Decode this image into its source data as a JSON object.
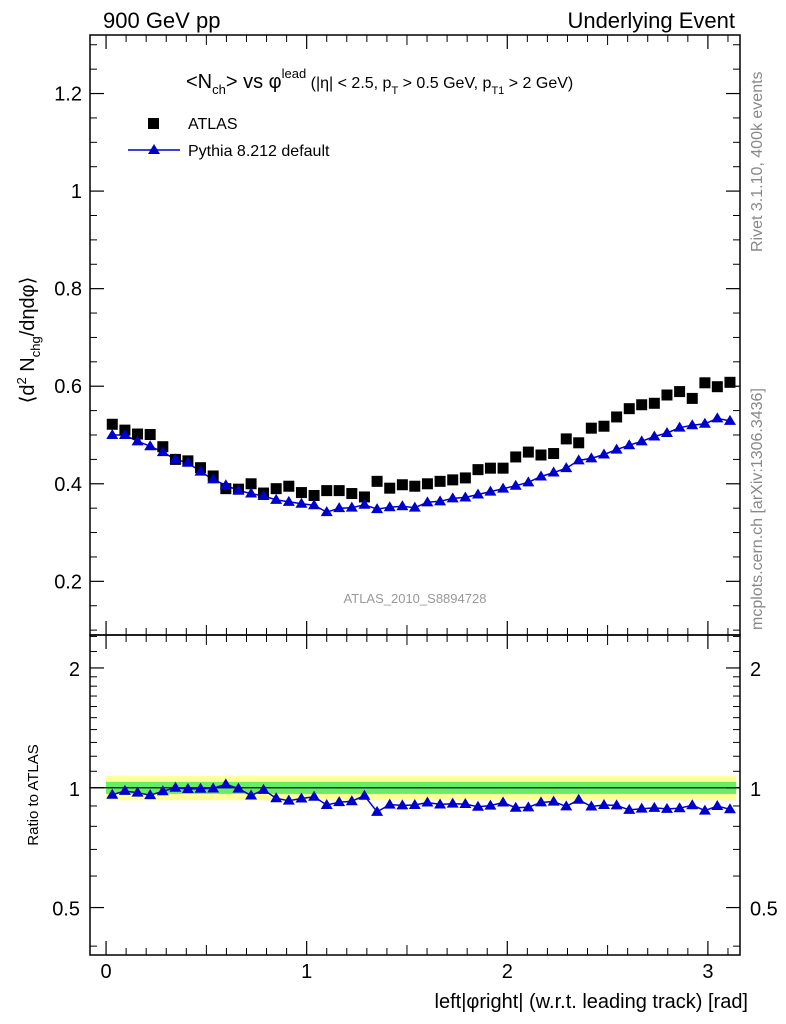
{
  "header": {
    "left_title": "900 GeV pp",
    "right_title": "Underlying Event"
  },
  "side_labels": {
    "rivet": "Rivet 3.1.10,  400k events",
    "mcplots": "mcplots.cern.ch [arXiv:1306.3436]"
  },
  "colors": {
    "data": "#000000",
    "mc": "#0000cc",
    "band_outer": "#ffff99",
    "band_inner": "#66ee66",
    "watermark": "#999999",
    "side_text": "#888888"
  },
  "chart_data": [
    {
      "type": "scatter",
      "panel": "main",
      "title": "<N_ch> vs φ^lead (|η| < 2.5, p_T > 0.5 GeV, p_T1 > 2 GeV)",
      "title_parts": {
        "n": "<N",
        "n_sub": "ch",
        "vs": "> vs φ",
        "sup": "lead",
        "cuts1": " (|η| < 2.5, p",
        "sub_t": "T",
        "cuts2": " > 0.5 GeV, p",
        "sub_t1": "T1",
        "cuts3": " > 2 GeV)"
      },
      "ylabel": "⟨d² N_chg/dηdφ⟩",
      "ylabel_parts": {
        "a": "⟨d",
        "sup": "2",
        "b": " N",
        "sub": "chg",
        "c": "/dηdφ⟩"
      },
      "xlim": [
        -0.08,
        3.16
      ],
      "ylim": [
        0.09,
        1.32
      ],
      "yticks": [
        0.2,
        0.4,
        0.6,
        0.8,
        1.0,
        1.2
      ],
      "ytick_labels": [
        "0.2",
        "0.4",
        "0.6",
        "0.8",
        "1",
        "1.2"
      ],
      "watermark": "ATLAS_2010_S8894728",
      "legend": [
        {
          "name": "ATLAS",
          "marker": "square"
        },
        {
          "name": "Pythia 8.212 default",
          "marker": "triangle-line"
        }
      ],
      "series": [
        {
          "name": "ATLAS",
          "x": [
            0.031,
            0.094,
            0.157,
            0.22,
            0.283,
            0.346,
            0.408,
            0.471,
            0.534,
            0.597,
            0.66,
            0.723,
            0.785,
            0.848,
            0.911,
            0.974,
            1.037,
            1.1,
            1.162,
            1.225,
            1.288,
            1.351,
            1.414,
            1.477,
            1.539,
            1.602,
            1.665,
            1.728,
            1.791,
            1.854,
            1.916,
            1.979,
            2.042,
            2.105,
            2.168,
            2.231,
            2.294,
            2.356,
            2.419,
            2.482,
            2.545,
            2.608,
            2.67,
            2.733,
            2.796,
            2.859,
            2.922,
            2.985,
            3.047,
            3.11
          ],
          "values": [
            0.522,
            0.51,
            0.502,
            0.501,
            0.476,
            0.45,
            0.447,
            0.433,
            0.416,
            0.39,
            0.389,
            0.4,
            0.381,
            0.39,
            0.395,
            0.382,
            0.376,
            0.386,
            0.386,
            0.38,
            0.373,
            0.405,
            0.391,
            0.398,
            0.395,
            0.4,
            0.405,
            0.408,
            0.412,
            0.429,
            0.432,
            0.432,
            0.455,
            0.465,
            0.459,
            0.462,
            0.492,
            0.484,
            0.514,
            0.518,
            0.537,
            0.554,
            0.562,
            0.565,
            0.582,
            0.589,
            0.575,
            0.607,
            0.599,
            0.608
          ]
        },
        {
          "name": "Pythia 8.212 default",
          "x": [
            0.031,
            0.094,
            0.157,
            0.22,
            0.283,
            0.346,
            0.408,
            0.471,
            0.534,
            0.597,
            0.66,
            0.723,
            0.785,
            0.848,
            0.911,
            0.974,
            1.037,
            1.1,
            1.162,
            1.225,
            1.288,
            1.351,
            1.414,
            1.477,
            1.539,
            1.602,
            1.665,
            1.728,
            1.791,
            1.854,
            1.916,
            1.979,
            2.042,
            2.105,
            2.168,
            2.231,
            2.294,
            2.356,
            2.419,
            2.482,
            2.545,
            2.608,
            2.67,
            2.733,
            2.796,
            2.859,
            2.922,
            2.985,
            3.047,
            3.11
          ],
          "values": [
            0.5,
            0.5,
            0.487,
            0.477,
            0.465,
            0.45,
            0.443,
            0.425,
            0.409,
            0.397,
            0.386,
            0.38,
            0.375,
            0.367,
            0.363,
            0.359,
            0.356,
            0.342,
            0.35,
            0.351,
            0.357,
            0.348,
            0.352,
            0.354,
            0.351,
            0.362,
            0.364,
            0.37,
            0.372,
            0.378,
            0.384,
            0.39,
            0.396,
            0.403,
            0.415,
            0.423,
            0.432,
            0.448,
            0.452,
            0.46,
            0.47,
            0.479,
            0.487,
            0.497,
            0.504,
            0.515,
            0.52,
            0.523,
            0.534,
            0.529
          ]
        }
      ]
    },
    {
      "type": "scatter",
      "panel": "ratio",
      "ylabel": "Ratio to ATLAS",
      "xlabel": "left|φright| (w.r.t. leading track) [rad]",
      "xlabel_parts": {
        "a": "left|",
        "phi": "φ",
        "b": "right| (w.r.t. leading track) [rad]"
      },
      "xlim": [
        -0.08,
        3.16
      ],
      "ylim": [
        0.38,
        2.42
      ],
      "yscale": "log",
      "yticks": [
        0.5,
        1,
        2
      ],
      "ytick_labels": [
        "0.5",
        "1",
        "2"
      ],
      "xticks": [
        0,
        1,
        2,
        3
      ],
      "xtick_labels": [
        "0",
        "1",
        "2",
        "3"
      ],
      "band_outer": [
        0.93,
        1.07
      ],
      "band_inner": [
        0.965,
        1.035
      ],
      "series": [
        {
          "name": "Pythia 8.212 default / ATLAS",
          "x": [
            0.031,
            0.094,
            0.157,
            0.22,
            0.283,
            0.346,
            0.408,
            0.471,
            0.534,
            0.597,
            0.66,
            0.723,
            0.785,
            0.848,
            0.911,
            0.974,
            1.037,
            1.1,
            1.162,
            1.225,
            1.288,
            1.351,
            1.414,
            1.477,
            1.539,
            1.602,
            1.665,
            1.728,
            1.791,
            1.854,
            1.916,
            1.979,
            2.042,
            2.105,
            2.168,
            2.231,
            2.294,
            2.356,
            2.419,
            2.482,
            2.545,
            2.608,
            2.67,
            2.733,
            2.796,
            2.859,
            2.922,
            2.985,
            3.047,
            3.11
          ],
          "values": [
            0.96,
            0.982,
            0.972,
            0.958,
            0.98,
            1.0,
            0.993,
            0.994,
            0.996,
            1.02,
            0.995,
            0.956,
            0.988,
            0.941,
            0.928,
            0.94,
            0.949,
            0.905,
            0.92,
            0.925,
            0.955,
            0.87,
            0.907,
            0.903,
            0.905,
            0.918,
            0.908,
            0.912,
            0.91,
            0.896,
            0.902,
            0.918,
            0.891,
            0.893,
            0.919,
            0.923,
            0.898,
            0.933,
            0.897,
            0.905,
            0.903,
            0.88,
            0.886,
            0.89,
            0.885,
            0.888,
            0.904,
            0.876,
            0.9,
            0.883
          ]
        }
      ]
    }
  ]
}
